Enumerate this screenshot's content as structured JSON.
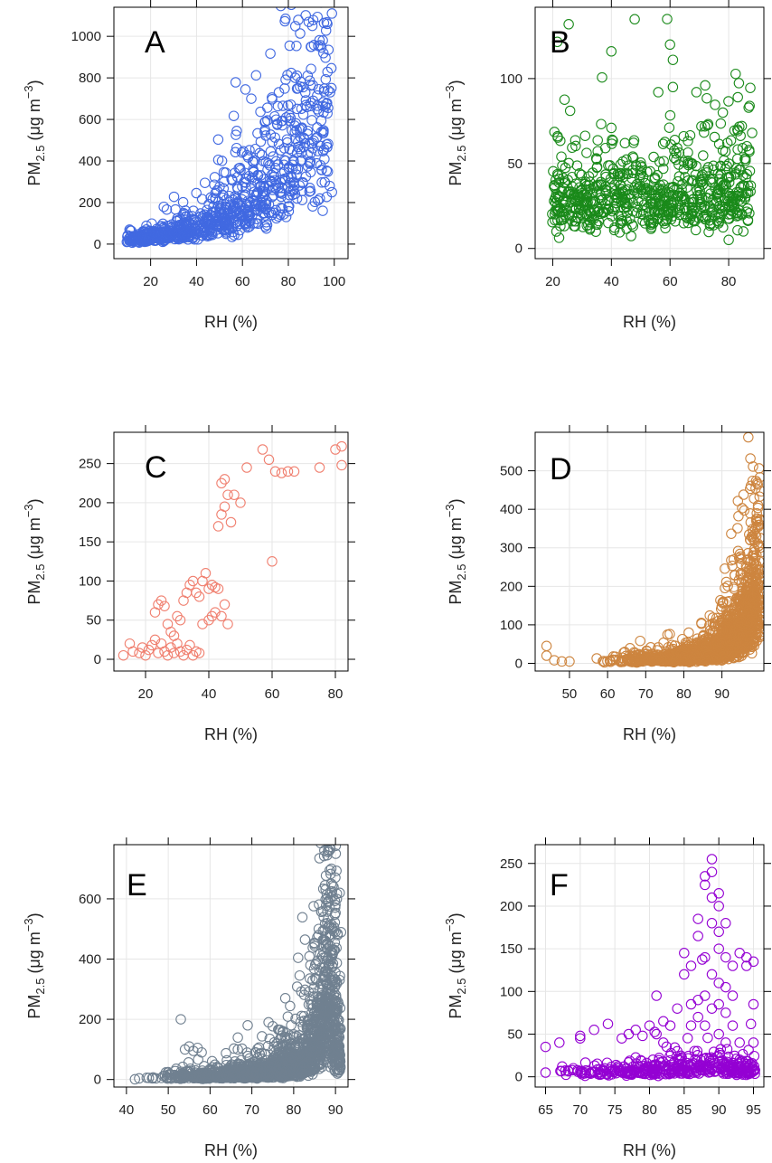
{
  "chart_data": [
    {
      "type": "scatter",
      "panel": "A",
      "color": "#4169e1",
      "xlabel": "RH (%)",
      "ylabel_main": "PM",
      "ylabel_sub": "2.5",
      "ylabel_unit": " (μg m",
      "ylabel_sup": "−3",
      "ylabel_close": ")",
      "xlim": [
        4,
        106
      ],
      "ylim": [
        -70,
        1140
      ],
      "xticks": [
        20,
        40,
        60,
        80,
        100
      ],
      "yticks": [
        0,
        200,
        400,
        600,
        800,
        1000
      ],
      "grid": true,
      "trend": [
        [
          10,
          20
        ],
        [
          25,
          40
        ],
        [
          40,
          80
        ],
        [
          55,
          150
        ],
        [
          65,
          230
        ],
        [
          75,
          330
        ],
        [
          85,
          520
        ],
        [
          92,
          650
        ],
        [
          99,
          850
        ]
      ],
      "spread": 0.55,
      "n": 900,
      "extra_points": [
        [
          99,
          1110
        ],
        [
          97,
          1060
        ],
        [
          90,
          950
        ],
        [
          95,
          980
        ],
        [
          99,
          250
        ],
        [
          98,
          280
        ],
        [
          52,
          300
        ]
      ]
    },
    {
      "type": "scatter",
      "panel": "B",
      "color": "#1a8a1a",
      "xlabel": "RH (%)",
      "ylabel_main": "PM",
      "ylabel_sub": "2.5",
      "ylabel_unit": " (μg m",
      "ylabel_sup": "−3",
      "ylabel_close": ")",
      "xlim": [
        14,
        92
      ],
      "ylim": [
        -6,
        142
      ],
      "xticks": [
        20,
        40,
        60,
        80
      ],
      "yticks": [
        0,
        50,
        100
      ],
      "grid": true,
      "trend": [
        [
          20,
          28
        ],
        [
          40,
          30
        ],
        [
          60,
          30
        ],
        [
          80,
          32
        ],
        [
          88,
          35
        ]
      ],
      "spread": 0.45,
      "n": 700,
      "extra_points": [
        [
          59,
          135
        ],
        [
          60,
          120
        ],
        [
          40,
          116
        ],
        [
          61,
          111
        ],
        [
          61,
          95
        ],
        [
          72,
          96
        ],
        [
          69,
          92
        ],
        [
          56,
          92
        ],
        [
          78,
          80
        ],
        [
          40,
          71
        ],
        [
          88,
          68
        ],
        [
          83,
          70
        ],
        [
          87,
          58
        ],
        [
          85,
          10
        ],
        [
          80,
          5
        ]
      ]
    },
    {
      "type": "scatter",
      "panel": "C",
      "color": "#f08070",
      "xlabel": "RH (%)",
      "ylabel_main": "PM",
      "ylabel_sub": "2.5",
      "ylabel_unit": " (μg m",
      "ylabel_sup": "−3",
      "ylabel_close": ")",
      "xlim": [
        10,
        84
      ],
      "ylim": [
        -15,
        290
      ],
      "xticks": [
        20,
        40,
        60,
        80
      ],
      "yticks": [
        0,
        50,
        100,
        150,
        200,
        250
      ],
      "grid": true,
      "trend": [],
      "spread": 0,
      "n": 0,
      "extra_points": [
        [
          13,
          5
        ],
        [
          15,
          20
        ],
        [
          16,
          10
        ],
        [
          18,
          8
        ],
        [
          19,
          15
        ],
        [
          20,
          5
        ],
        [
          21,
          12
        ],
        [
          22,
          18
        ],
        [
          23,
          25
        ],
        [
          24,
          8
        ],
        [
          25,
          20
        ],
        [
          26,
          10
        ],
        [
          27,
          5
        ],
        [
          28,
          15
        ],
        [
          29,
          8
        ],
        [
          30,
          20
        ],
        [
          31,
          10
        ],
        [
          32,
          5
        ],
        [
          33,
          12
        ],
        [
          34,
          18
        ],
        [
          35,
          5
        ],
        [
          36,
          10
        ],
        [
          37,
          8
        ],
        [
          23,
          60
        ],
        [
          24,
          70
        ],
        [
          25,
          75
        ],
        [
          26,
          68
        ],
        [
          27,
          45
        ],
        [
          28,
          35
        ],
        [
          29,
          30
        ],
        [
          30,
          55
        ],
        [
          31,
          50
        ],
        [
          32,
          75
        ],
        [
          33,
          85
        ],
        [
          34,
          95
        ],
        [
          35,
          100
        ],
        [
          36,
          85
        ],
        [
          37,
          80
        ],
        [
          38,
          100
        ],
        [
          39,
          110
        ],
        [
          40,
          90
        ],
        [
          41,
          95
        ],
        [
          42,
          92
        ],
        [
          43,
          90
        ],
        [
          44,
          55
        ],
        [
          45,
          70
        ],
        [
          46,
          45
        ],
        [
          40,
          50
        ],
        [
          41,
          55
        ],
        [
          42,
          60
        ],
        [
          38,
          45
        ],
        [
          43,
          170
        ],
        [
          44,
          185
        ],
        [
          45,
          195
        ],
        [
          46,
          210
        ],
        [
          44,
          225
        ],
        [
          45,
          230
        ],
        [
          47,
          175
        ],
        [
          48,
          210
        ],
        [
          50,
          200
        ],
        [
          52,
          245
        ],
        [
          57,
          268
        ],
        [
          59,
          255
        ],
        [
          61,
          240
        ],
        [
          63,
          238
        ],
        [
          65,
          240
        ],
        [
          67,
          240
        ],
        [
          75,
          245
        ],
        [
          80,
          268
        ],
        [
          82,
          272
        ],
        [
          82,
          248
        ],
        [
          60,
          125
        ]
      ]
    },
    {
      "type": "scatter",
      "panel": "D",
      "color": "#cd853f",
      "xlabel": "RH (%)",
      "ylabel_main": "PM",
      "ylabel_sub": "2.5",
      "ylabel_unit": " (μg m",
      "ylabel_sup": "−3",
      "ylabel_close": ")",
      "xlim": [
        41,
        101
      ],
      "ylim": [
        -20,
        600
      ],
      "xticks": [
        50,
        60,
        70,
        80,
        90
      ],
      "yticks": [
        0,
        100,
        200,
        300,
        400,
        500
      ],
      "grid": true,
      "trend": [
        [
          55,
          8
        ],
        [
          70,
          10
        ],
        [
          80,
          15
        ],
        [
          88,
          30
        ],
        [
          93,
          60
        ],
        [
          96,
          110
        ],
        [
          98,
          160
        ],
        [
          100,
          220
        ]
      ],
      "spread": 0.6,
      "n": 1600,
      "extra_points": [
        [
          44,
          45
        ],
        [
          44,
          20
        ],
        [
          46,
          8
        ],
        [
          48,
          5
        ],
        [
          50,
          5
        ],
        [
          99,
          370
        ],
        [
          100,
          360
        ],
        [
          99,
          330
        ],
        [
          100,
          300
        ],
        [
          98,
          280
        ],
        [
          89,
          100
        ]
      ]
    },
    {
      "type": "scatter",
      "panel": "E",
      "color": "#708090",
      "xlabel": "RH (%)",
      "ylabel_main": "PM",
      "ylabel_sub": "2.5",
      "ylabel_unit": " (μg m",
      "ylabel_sup": "−3",
      "ylabel_close": ")",
      "xlim": [
        37,
        93
      ],
      "ylim": [
        -25,
        780
      ],
      "xticks": [
        40,
        50,
        60,
        70,
        80,
        90
      ],
      "yticks": [
        0,
        200,
        400,
        600
      ],
      "grid": true,
      "trend": [
        [
          40,
          5
        ],
        [
          55,
          10
        ],
        [
          65,
          18
        ],
        [
          75,
          30
        ],
        [
          82,
          60
        ],
        [
          86,
          150
        ],
        [
          88,
          300
        ],
        [
          90,
          200
        ],
        [
          91,
          60
        ]
      ],
      "spread": 0.7,
      "n": 1700,
      "extra_points": [
        [
          53,
          200
        ],
        [
          54,
          100
        ],
        [
          55,
          110
        ],
        [
          56,
          95
        ],
        [
          57,
          105
        ],
        [
          58,
          90
        ],
        [
          69,
          180
        ],
        [
          74,
          190
        ],
        [
          78,
          270
        ],
        [
          84,
          380
        ],
        [
          85,
          450
        ],
        [
          86,
          500
        ],
        [
          87,
          560
        ],
        [
          88,
          600
        ],
        [
          88,
          745
        ],
        [
          89,
          700
        ],
        [
          89,
          650
        ],
        [
          90,
          580
        ],
        [
          91,
          620
        ],
        [
          90,
          490
        ]
      ]
    },
    {
      "type": "scatter",
      "panel": "F",
      "color": "#9400d3",
      "xlabel": "RH (%)",
      "ylabel_main": "PM",
      "ylabel_sub": "2.5",
      "ylabel_unit": " (μg m",
      "ylabel_sup": "−3",
      "ylabel_close": ")",
      "xlim": [
        63.5,
        96.5
      ],
      "ylim": [
        -12,
        272
      ],
      "xticks": [
        65,
        70,
        75,
        80,
        85,
        90,
        95
      ],
      "yticks": [
        0,
        50,
        100,
        150,
        200,
        250
      ],
      "grid": true,
      "trend": [
        [
          66,
          5
        ],
        [
          75,
          6
        ],
        [
          82,
          8
        ],
        [
          86,
          12
        ],
        [
          89,
          15
        ],
        [
          92,
          10
        ],
        [
          95,
          8
        ]
      ],
      "spread": 0.6,
      "n": 380,
      "extra_points": [
        [
          65,
          5
        ],
        [
          65,
          35
        ],
        [
          67,
          40
        ],
        [
          69,
          10
        ],
        [
          70,
          48
        ],
        [
          70,
          45
        ],
        [
          72,
          55
        ],
        [
          74,
          62
        ],
        [
          76,
          45
        ],
        [
          77,
          50
        ],
        [
          78,
          55
        ],
        [
          79,
          48
        ],
        [
          80,
          60
        ],
        [
          81,
          95
        ],
        [
          81,
          50
        ],
        [
          82,
          65
        ],
        [
          82,
          40
        ],
        [
          83,
          60
        ],
        [
          84,
          80
        ],
        [
          84,
          30
        ],
        [
          85,
          120
        ],
        [
          85,
          145
        ],
        [
          86,
          130
        ],
        [
          86,
          60
        ],
        [
          86,
          85
        ],
        [
          87,
          165
        ],
        [
          87,
          185
        ],
        [
          87,
          70
        ],
        [
          87,
          90
        ],
        [
          88,
          140
        ],
        [
          88,
          95
        ],
        [
          88,
          60
        ],
        [
          88,
          225
        ],
        [
          88,
          235
        ],
        [
          89,
          255
        ],
        [
          89,
          240
        ],
        [
          89,
          210
        ],
        [
          89,
          180
        ],
        [
          89,
          120
        ],
        [
          89,
          80
        ],
        [
          90,
          215
        ],
        [
          90,
          200
        ],
        [
          90,
          170
        ],
        [
          90,
          150
        ],
        [
          90,
          110
        ],
        [
          90,
          85
        ],
        [
          90,
          50
        ],
        [
          91,
          180
        ],
        [
          91,
          140
        ],
        [
          91,
          105
        ],
        [
          91,
          75
        ],
        [
          91,
          40
        ],
        [
          92,
          130
        ],
        [
          92,
          95
        ],
        [
          92,
          60
        ],
        [
          93,
          145
        ],
        [
          93,
          40
        ],
        [
          94,
          140
        ],
        [
          94,
          130
        ],
        [
          95,
          135
        ],
        [
          95,
          85
        ],
        [
          95,
          40
        ],
        [
          93,
          20
        ],
        [
          94,
          15
        ]
      ]
    }
  ]
}
